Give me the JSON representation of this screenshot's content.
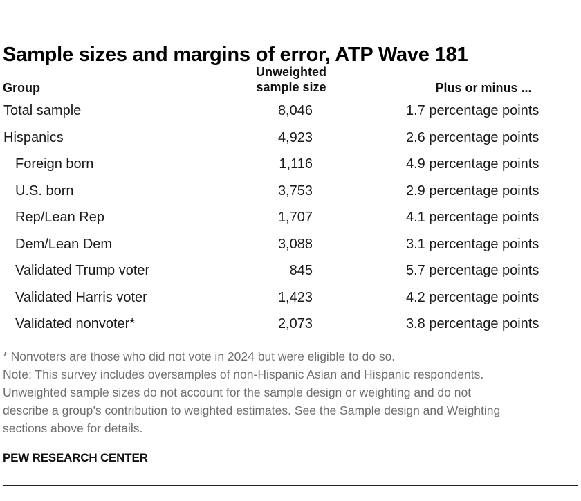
{
  "title": "Sample sizes and margins of error, ATP Wave 181",
  "columns": {
    "group": "Group",
    "size_line1": "Unweighted",
    "size_line2": "sample size",
    "moe": "Plus or minus ..."
  },
  "rows": [
    {
      "group": "Total sample",
      "size": "8,046",
      "moe": "1.7 percentage points",
      "indent": false
    },
    {
      "group": "Hispanics",
      "size": "4,923",
      "moe": "2.6 percentage points",
      "indent": false
    },
    {
      "group": "Foreign born",
      "size": "1,116",
      "moe": "4.9 percentage points",
      "indent": true
    },
    {
      "group": "U.S. born",
      "size": "3,753",
      "moe": "2.9 percentage points",
      "indent": true
    },
    {
      "group": "Rep/Lean Rep",
      "size": "1,707",
      "moe": "4.1 percentage points",
      "indent": true
    },
    {
      "group": "Dem/Lean Dem",
      "size": "3,088",
      "moe": "3.1 percentage points",
      "indent": true
    },
    {
      "group": "Validated Trump voter",
      "size": "845",
      "moe": "5.7 percentage points",
      "indent": true
    },
    {
      "group": "Validated Harris voter",
      "size": "1,423",
      "moe": "4.2 percentage points",
      "indent": true
    },
    {
      "group": "Validated nonvoter*",
      "size": "2,073",
      "moe": "3.8 percentage points",
      "indent": true
    }
  ],
  "notes": {
    "footnote": "* Nonvoters are those who did not vote in 2024 but were eligible to do so.",
    "note_line1": "Note: This survey includes oversamples of non-Hispanic Asian and Hispanic respondents.",
    "note_line2": "Unweighted sample sizes do not account for the sample design or weighting and do not",
    "note_line3": "describe a group’s contribution to weighted estimates. See the Sample design and Weighting",
    "note_line4": "sections above for details."
  },
  "source": "PEW RESEARCH CENTER"
}
